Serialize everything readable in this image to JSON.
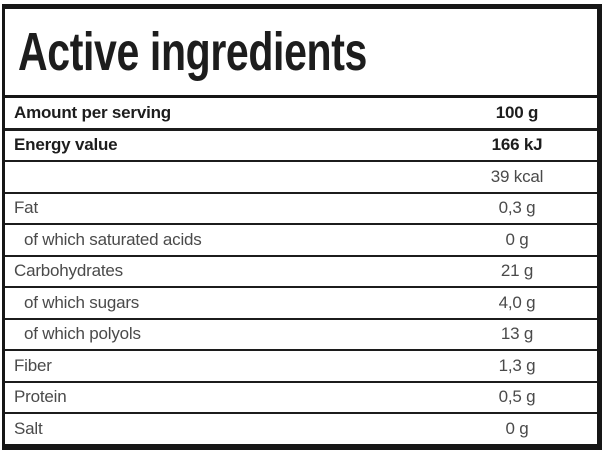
{
  "title": "Active ingredients",
  "colors": {
    "frame_border": "#161616",
    "text_bold": "#1d1d1d",
    "text_regular": "#4a4a4a",
    "background": "#ffffff"
  },
  "table": {
    "rows": [
      {
        "label": "Amount per serving",
        "value": "100 g"
      },
      {
        "label": "Energy value",
        "value": "166 kJ"
      },
      {
        "label": "",
        "value": "39 kcal"
      },
      {
        "label": "Fat",
        "value": "0,3 g"
      },
      {
        "label": "of which saturated acids",
        "value": "0 g"
      },
      {
        "label": "Carbohydrates",
        "value": "21 g"
      },
      {
        "label": "of which sugars",
        "value": "4,0 g"
      },
      {
        "label": "of which polyols",
        "value": "13 g"
      },
      {
        "label": "Fiber",
        "value": "1,3 g"
      },
      {
        "label": "Protein",
        "value": "0,5 g"
      },
      {
        "label": "Salt",
        "value": "0 g"
      }
    ]
  }
}
